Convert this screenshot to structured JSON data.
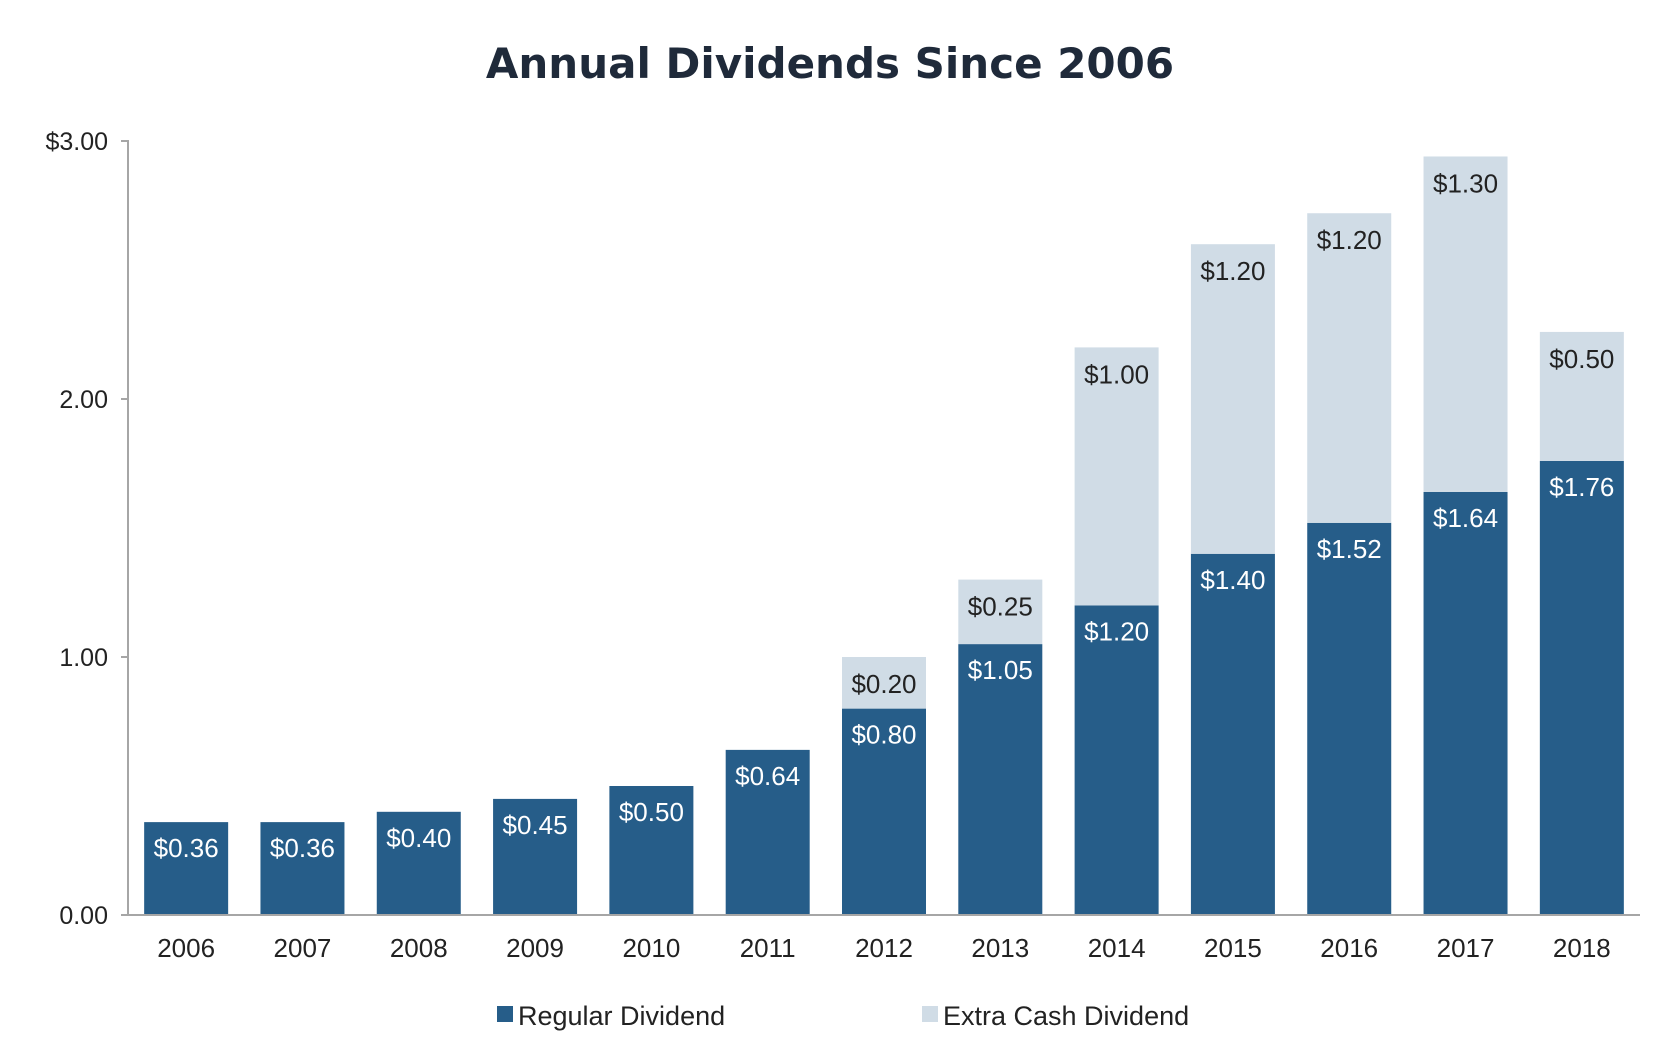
{
  "chart_data": {
    "type": "bar",
    "stacked": true,
    "title": "Annual Dividends Since 2006",
    "categories": [
      "2006",
      "2007",
      "2008",
      "2009",
      "2010",
      "2011",
      "2012",
      "2013",
      "2014",
      "2015",
      "2016",
      "2017",
      "2018"
    ],
    "series": [
      {
        "name": "Regular Dividend",
        "color": "#265d89",
        "values": [
          0.36,
          0.36,
          0.4,
          0.45,
          0.5,
          0.64,
          0.8,
          1.05,
          1.2,
          1.4,
          1.52,
          1.64,
          1.76
        ],
        "labels": [
          "$0.36",
          "$0.36",
          "$0.40",
          "$0.45",
          "$0.50",
          "$0.64",
          "$0.80",
          "$1.05",
          "$1.20",
          "$1.40",
          "$1.52",
          "$1.64",
          "$1.76"
        ]
      },
      {
        "name": "Extra Cash Dividend",
        "color": "#d0dce6",
        "values": [
          0,
          0,
          0,
          0,
          0,
          0,
          0.2,
          0.25,
          1.0,
          1.2,
          1.2,
          1.3,
          0.5
        ],
        "labels": [
          "",
          "",
          "",
          "",
          "",
          "",
          "$0.20",
          "$0.25",
          "$1.00",
          "$1.20",
          "$1.20",
          "$1.30",
          "$0.50"
        ]
      }
    ],
    "ylim": [
      0,
      3
    ],
    "y_ticks": [
      {
        "value": 0,
        "label": "0.00"
      },
      {
        "value": 1,
        "label": "1.00"
      },
      {
        "value": 2,
        "label": "2.00"
      },
      {
        "value": 3,
        "label": "$3.00"
      }
    ],
    "xlabel": "",
    "ylabel": "",
    "grid": false,
    "legend_position": "bottom",
    "axis_color": "#a6a6a6"
  }
}
